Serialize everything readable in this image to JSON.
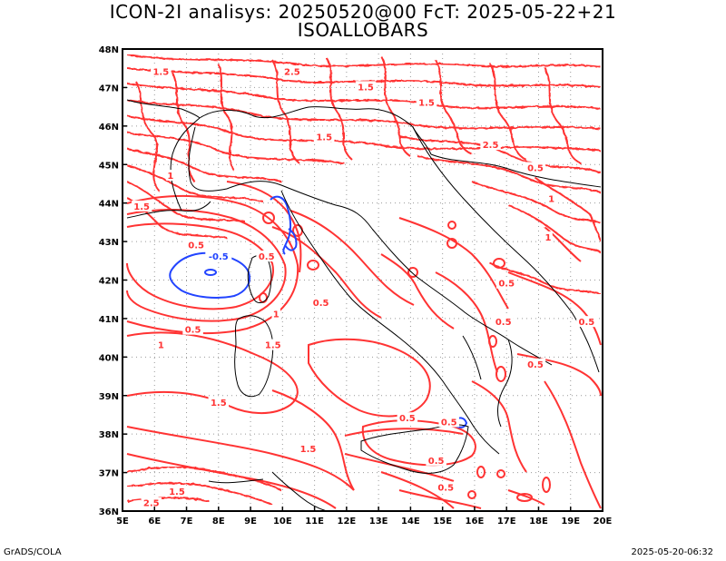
{
  "title": {
    "line1": "ICON-2I analisys: 20250520@00 FcT: 2025-05-22+21",
    "line2": "ISOALLOBARS"
  },
  "footer": {
    "left": "GrADS/COLA",
    "right": "2025-05-20-06:32"
  },
  "map": {
    "lon_labels": [
      "5E",
      "6E",
      "7E",
      "8E",
      "9E",
      "10E",
      "11E",
      "12E",
      "13E",
      "14E",
      "15E",
      "16E",
      "17E",
      "18E",
      "19E",
      "20E"
    ],
    "lat_labels": [
      "36N",
      "37N",
      "38N",
      "39N",
      "40N",
      "41N",
      "42N",
      "43N",
      "44N",
      "45N",
      "46N",
      "47N",
      "48N"
    ],
    "grid": "dotted",
    "colors": {
      "positive_contours": "#ff3333",
      "negative_contours": "#2244ff",
      "coastline": "#000000",
      "grid": "#999999"
    },
    "contour_labels": [
      {
        "text": "1.5",
        "lon": 6.2,
        "lat": 47.4,
        "sign": "pos"
      },
      {
        "text": "2.5",
        "lon": 10.3,
        "lat": 47.4,
        "sign": "pos"
      },
      {
        "text": "1.5",
        "lon": 12.6,
        "lat": 47.0,
        "sign": "pos"
      },
      {
        "text": "1.5",
        "lon": 11.3,
        "lat": 45.7,
        "sign": "pos"
      },
      {
        "text": "1.5",
        "lon": 14.5,
        "lat": 46.6,
        "sign": "pos"
      },
      {
        "text": "2.5",
        "lon": 16.5,
        "lat": 45.5,
        "sign": "pos"
      },
      {
        "text": "1",
        "lon": 6.5,
        "lat": 44.7,
        "sign": "pos"
      },
      {
        "text": "1.5",
        "lon": 5.6,
        "lat": 43.9,
        "sign": "pos"
      },
      {
        "text": "0.5",
        "lon": 17.9,
        "lat": 44.9,
        "sign": "pos"
      },
      {
        "text": "1",
        "lon": 18.4,
        "lat": 44.1,
        "sign": "pos"
      },
      {
        "text": "1",
        "lon": 18.3,
        "lat": 43.1,
        "sign": "pos"
      },
      {
        "text": "0.5",
        "lon": 7.3,
        "lat": 42.9,
        "sign": "pos"
      },
      {
        "text": "-0.5",
        "lon": 8.0,
        "lat": 42.6,
        "sign": "neg"
      },
      {
        "text": "0.5",
        "lon": 9.5,
        "lat": 42.6,
        "sign": "pos"
      },
      {
        "text": "0.5",
        "lon": 17.0,
        "lat": 41.9,
        "sign": "pos"
      },
      {
        "text": "1",
        "lon": 9.8,
        "lat": 41.1,
        "sign": "pos"
      },
      {
        "text": "0.5",
        "lon": 11.2,
        "lat": 41.4,
        "sign": "pos"
      },
      {
        "text": "0.5",
        "lon": 7.2,
        "lat": 40.7,
        "sign": "pos"
      },
      {
        "text": "0.5",
        "lon": 16.9,
        "lat": 40.9,
        "sign": "pos"
      },
      {
        "text": "0.5",
        "lon": 19.5,
        "lat": 40.9,
        "sign": "pos"
      },
      {
        "text": "1",
        "lon": 6.2,
        "lat": 40.3,
        "sign": "pos"
      },
      {
        "text": "1.5",
        "lon": 9.7,
        "lat": 40.3,
        "sign": "pos"
      },
      {
        "text": "0.5",
        "lon": 17.9,
        "lat": 39.8,
        "sign": "pos"
      },
      {
        "text": "1.5",
        "lon": 8.0,
        "lat": 38.8,
        "sign": "pos"
      },
      {
        "text": "0.5",
        "lon": 13.9,
        "lat": 38.4,
        "sign": "pos"
      },
      {
        "text": "0.5",
        "lon": 15.2,
        "lat": 38.3,
        "sign": "pos"
      },
      {
        "text": "0.5",
        "lon": 14.8,
        "lat": 37.3,
        "sign": "pos"
      },
      {
        "text": "1.5",
        "lon": 10.8,
        "lat": 37.6,
        "sign": "pos"
      },
      {
        "text": "1.5",
        "lon": 6.7,
        "lat": 36.5,
        "sign": "pos"
      },
      {
        "text": "2.5",
        "lon": 5.9,
        "lat": 36.2,
        "sign": "pos"
      },
      {
        "text": "0.5",
        "lon": 15.1,
        "lat": 36.6,
        "sign": "pos"
      }
    ]
  }
}
